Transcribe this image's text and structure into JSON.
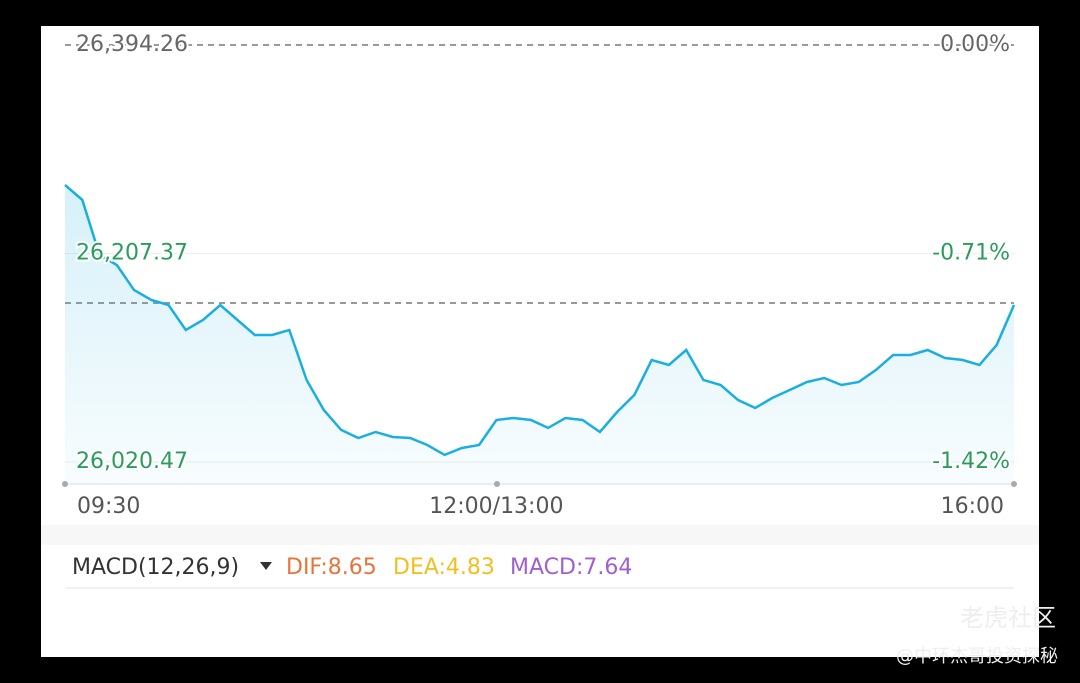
{
  "chart_data": {
    "type": "line",
    "ylim": [
      26020.47,
      26394.26
    ],
    "yticks": [
      {
        "value": 26394.26,
        "label": "26,394.26"
      },
      {
        "value": 26207.37,
        "label": "26,207.37"
      },
      {
        "value": 26020.47,
        "label": "26,020.47"
      }
    ],
    "y2lim": [
      -1.42,
      0
    ],
    "y2ticks": [
      {
        "value": 0,
        "label": "0.00%"
      },
      {
        "value": -0.71,
        "label": "-0.71%"
      },
      {
        "value": -1.42,
        "label": "-1.42%"
      }
    ],
    "xlim": [
      0,
      330
    ],
    "xticks": [
      {
        "value": 0,
        "label": "09:30"
      },
      {
        "value": 150,
        "label": "12:00/13:00"
      },
      {
        "value": 330,
        "label": "16:00"
      }
    ],
    "reference_line": 26163.0,
    "x": [
      0,
      6,
      12,
      18,
      24,
      30,
      36,
      42,
      48,
      54,
      60,
      66,
      72,
      78,
      84,
      90,
      96,
      102,
      108,
      114,
      120,
      126,
      132,
      138,
      144,
      150,
      156,
      162,
      168,
      174,
      180,
      186,
      192,
      198,
      204,
      210,
      216,
      222,
      228,
      234,
      240,
      246,
      252,
      258,
      264,
      270,
      276,
      282,
      288,
      294,
      300,
      306,
      312,
      318,
      324,
      330
    ],
    "series": [
      {
        "color": "#1aafe0",
        "values": [
          26268.8,
          26255.4,
          26206.1,
          26197.1,
          26174.7,
          26165.7,
          26161.2,
          26138.8,
          26147.8,
          26161.2,
          26147.8,
          26134.3,
          26134.3,
          26138.8,
          26094.0,
          26067.1,
          26049.2,
          26042.0,
          26047.4,
          26042.9,
          26042.0,
          26035.7,
          26026.8,
          26033.0,
          26035.7,
          26058.1,
          26059.9,
          26058.1,
          26051.0,
          26059.9,
          26058.1,
          26047.4,
          26065.3,
          26080.6,
          26111.9,
          26107.4,
          26120.9,
          26094.0,
          26089.5,
          26076.1,
          26068.9,
          26077.9,
          26085.0,
          26092.2,
          26095.8,
          26089.5,
          26092.2,
          26103.0,
          26116.4,
          26116.4,
          26120.9,
          26113.7,
          26112.0,
          26107.4,
          26125.4,
          26161.2
        ]
      }
    ],
    "indicator": {
      "name": "MACD(12,26,9)",
      "dif": "DIF:8.65",
      "dea": "DEA:4.83",
      "macd": "MACD:7.64"
    }
  },
  "watermark": {
    "brand": "老虎社区",
    "author": "@中环杰哥投资探秘"
  }
}
